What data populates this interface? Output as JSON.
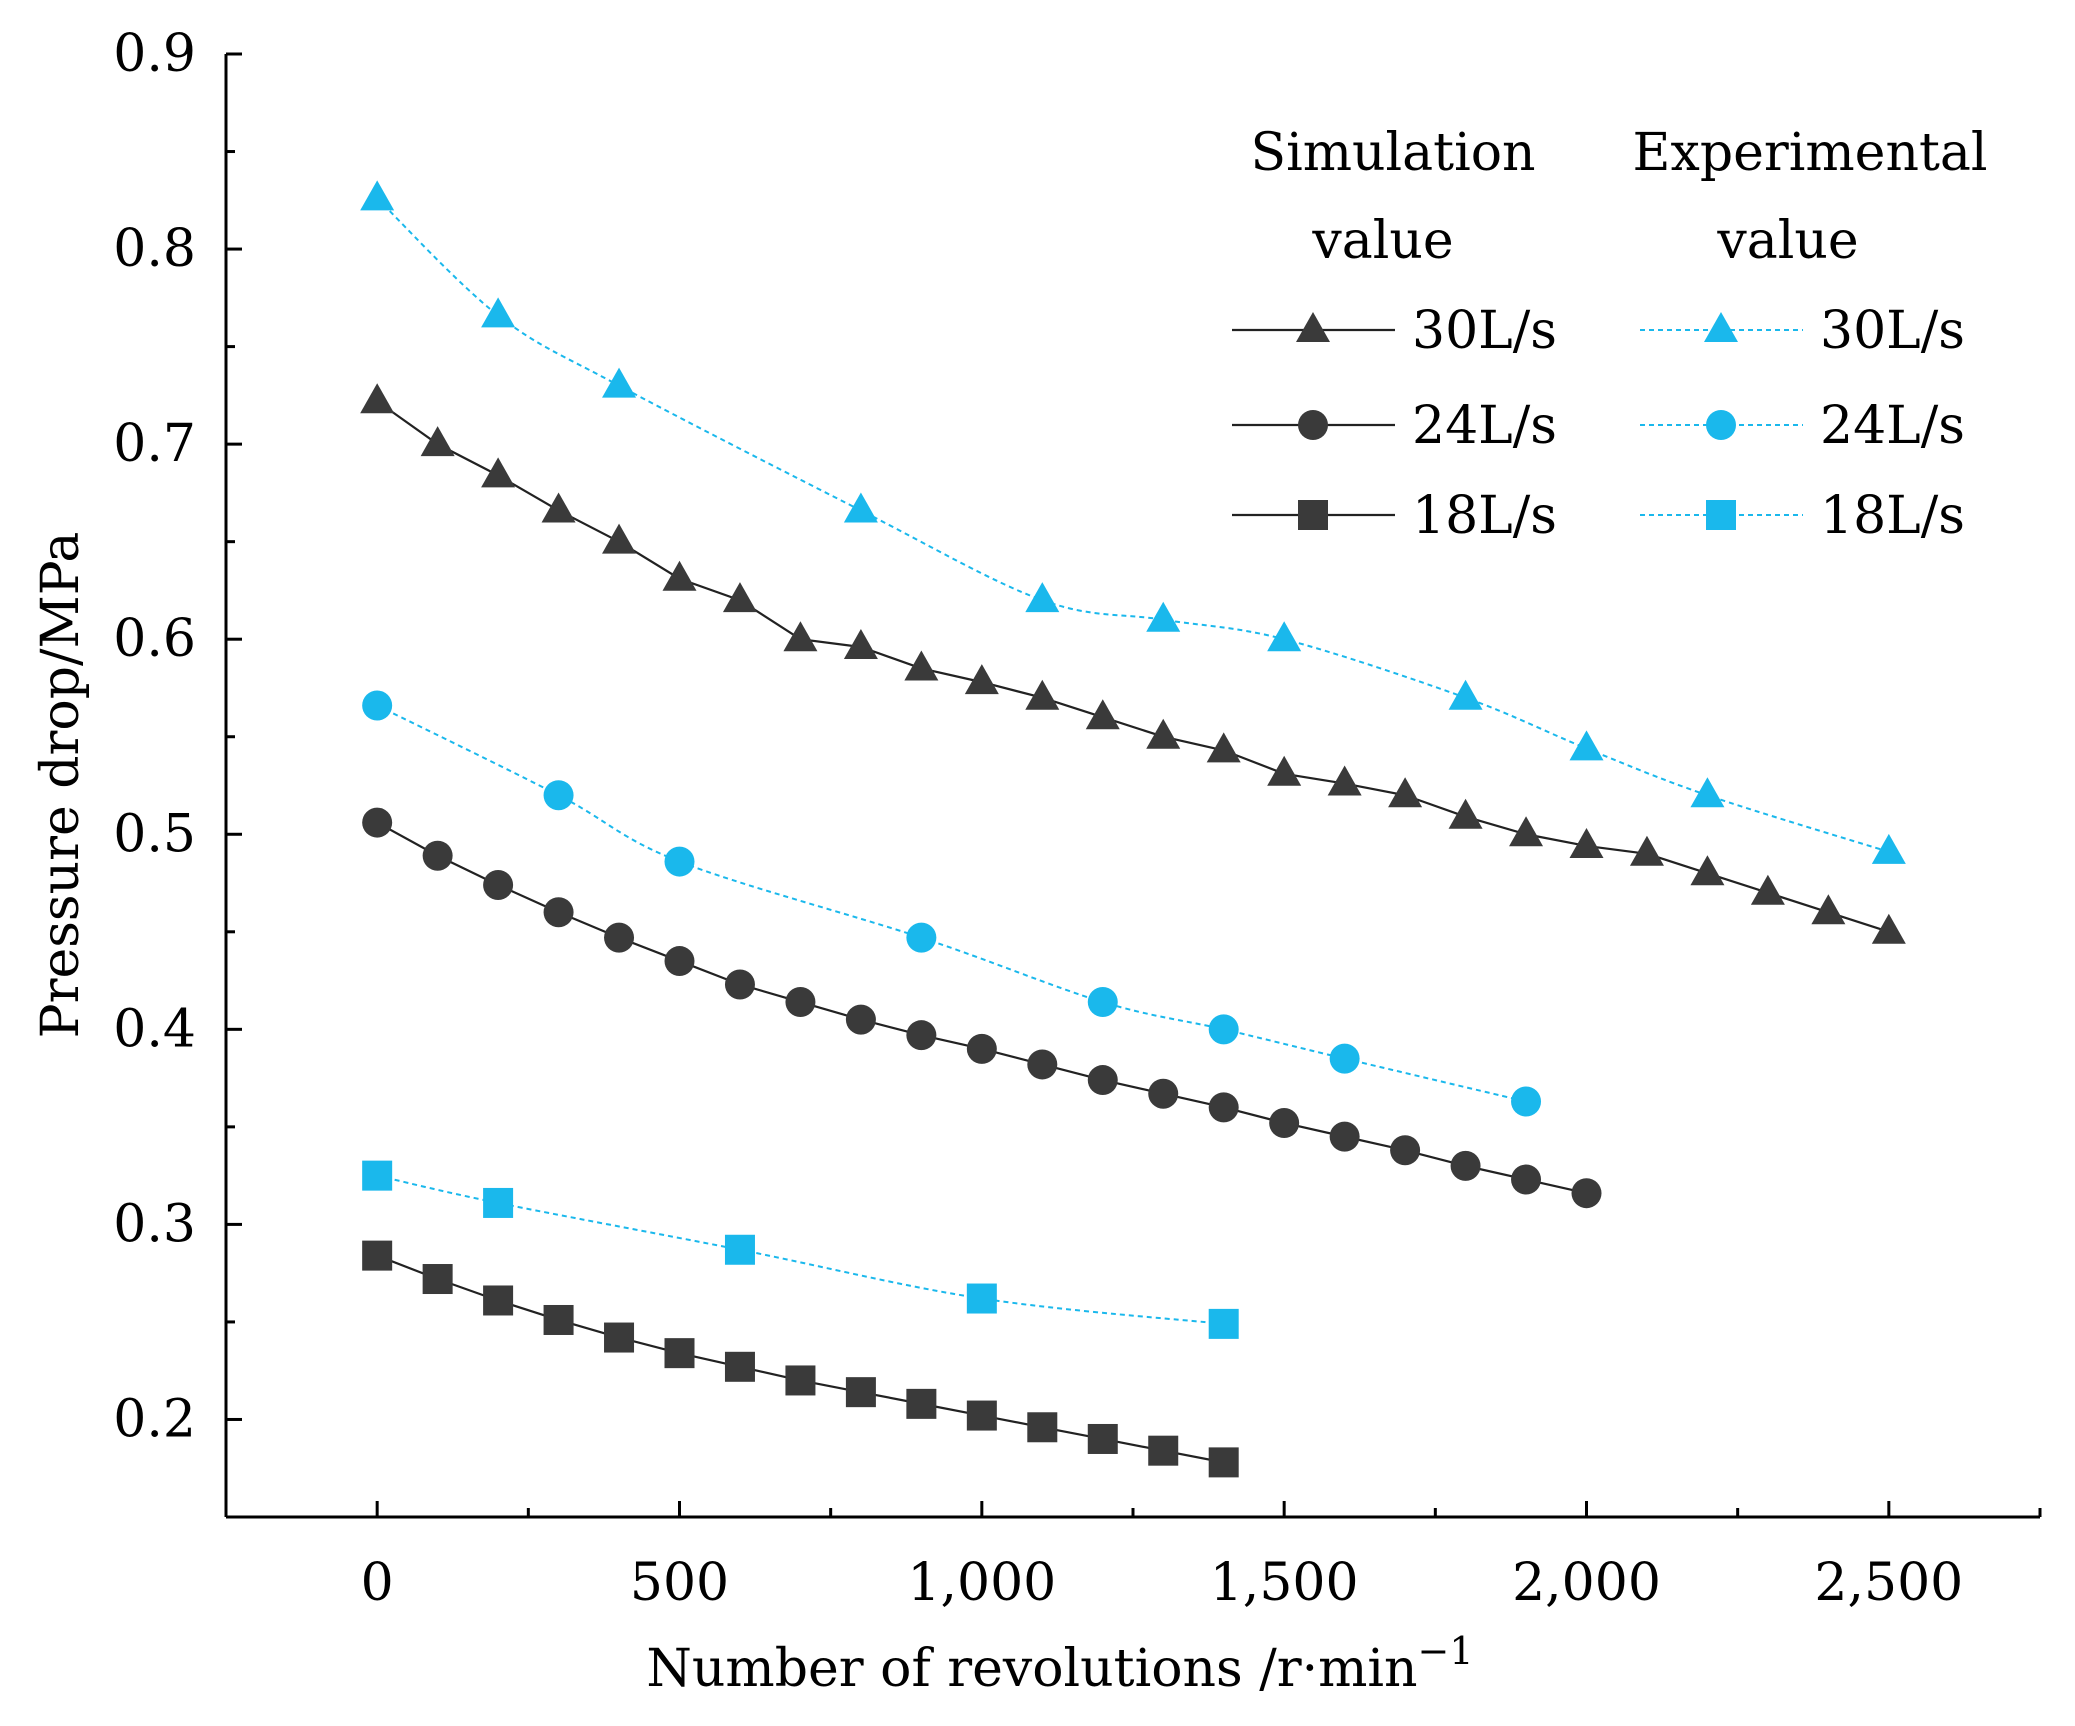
{
  "chart_data": {
    "type": "line",
    "title": "",
    "xlabel": "Number of revolutions /r·min",
    "xlabel_superscript": "−1",
    "ylabel": "Pressure drop/MPa",
    "xlim": [
      -250,
      2750
    ],
    "ylim": [
      0.15,
      0.9
    ],
    "x_ticks": [
      0,
      500,
      1000,
      1500,
      2000,
      2500
    ],
    "x_tick_labels": [
      "0",
      "500",
      "1,000",
      "1,500",
      "2,000",
      "2,500"
    ],
    "y_ticks": [
      0.2,
      0.3,
      0.4,
      0.5,
      0.6,
      0.7,
      0.8,
      0.9
    ],
    "y_tick_labels": [
      "0.2",
      "0.3",
      "0.4",
      "0.5",
      "0.6",
      "0.7",
      "0.8",
      "0.9"
    ],
    "grid": false,
    "legend": {
      "placement": "top-right",
      "simulation_header": [
        "Simulation",
        "value"
      ],
      "experimental_header": [
        "Experimental",
        "value"
      ],
      "labels": [
        "30L/s",
        "24L/s",
        "18L/s"
      ]
    },
    "colors": {
      "simulation": "#3a3a3a",
      "experimental": "#1ab8ec"
    },
    "series": [
      {
        "name": "Simulation 30L/s",
        "group": "simulation",
        "marker": "triangle",
        "x": [
          0,
          100,
          200,
          300,
          400,
          500,
          600,
          700,
          800,
          900,
          1000,
          1100,
          1200,
          1300,
          1400,
          1500,
          1600,
          1700,
          1800,
          1900,
          2000,
          2100,
          2200,
          2300,
          2400,
          2500
        ],
        "values": [
          0.722,
          0.7,
          0.684,
          0.666,
          0.65,
          0.631,
          0.62,
          0.6,
          0.596,
          0.585,
          0.578,
          0.57,
          0.56,
          0.55,
          0.543,
          0.531,
          0.526,
          0.52,
          0.509,
          0.5,
          0.494,
          0.49,
          0.48,
          0.47,
          0.46,
          0.45
        ]
      },
      {
        "name": "Simulation 24L/s",
        "group": "simulation",
        "marker": "circle",
        "x": [
          0,
          100,
          200,
          300,
          400,
          500,
          600,
          700,
          800,
          900,
          1000,
          1100,
          1200,
          1300,
          1400,
          1500,
          1600,
          1700,
          1800,
          1900,
          2000
        ],
        "values": [
          0.506,
          0.489,
          0.474,
          0.46,
          0.447,
          0.435,
          0.423,
          0.414,
          0.405,
          0.397,
          0.39,
          0.382,
          0.374,
          0.367,
          0.36,
          0.352,
          0.345,
          0.338,
          0.33,
          0.323,
          0.316
        ]
      },
      {
        "name": "Simulation 18L/s",
        "group": "simulation",
        "marker": "square",
        "x": [
          0,
          100,
          200,
          300,
          400,
          500,
          600,
          700,
          800,
          900,
          1000,
          1100,
          1200,
          1300,
          1400
        ],
        "values": [
          0.284,
          0.272,
          0.261,
          0.251,
          0.242,
          0.234,
          0.227,
          0.22,
          0.214,
          0.208,
          0.202,
          0.196,
          0.19,
          0.184,
          0.178
        ]
      },
      {
        "name": "Experimental 30L/s",
        "group": "experimental",
        "marker": "triangle",
        "x": [
          0,
          200,
          400,
          800,
          1100,
          1300,
          1500,
          1800,
          2000,
          2200,
          2500
        ],
        "values": [
          0.826,
          0.766,
          0.73,
          0.666,
          0.62,
          0.61,
          0.6,
          0.57,
          0.544,
          0.52,
          0.491
        ]
      },
      {
        "name": "Experimental 24L/s",
        "group": "experimental",
        "marker": "circle",
        "x": [
          0,
          300,
          500,
          900,
          1200,
          1400,
          1600,
          1900
        ],
        "values": [
          0.566,
          0.52,
          0.486,
          0.447,
          0.414,
          0.4,
          0.385,
          0.363
        ]
      },
      {
        "name": "Experimental 18L/s",
        "group": "experimental",
        "marker": "square",
        "x": [
          0,
          200,
          600,
          1000,
          1400
        ],
        "values": [
          0.325,
          0.311,
          0.287,
          0.262,
          0.249
        ]
      }
    ]
  }
}
